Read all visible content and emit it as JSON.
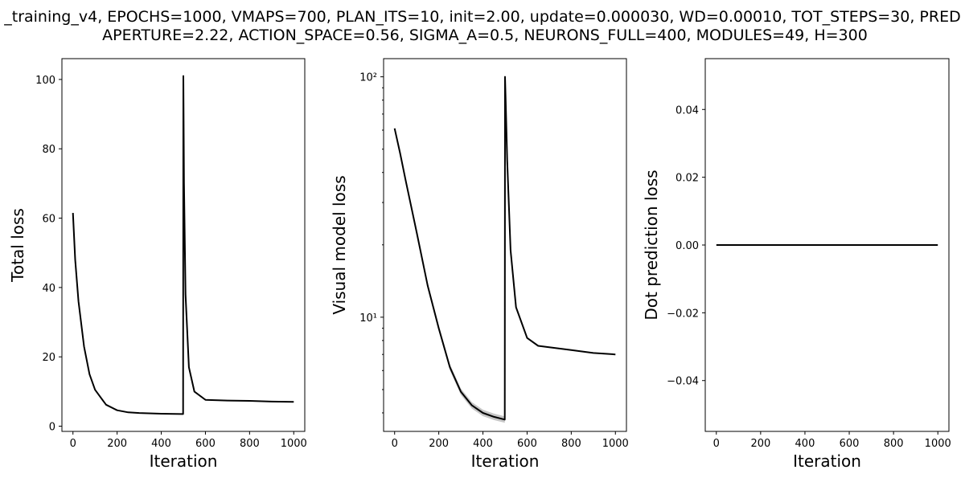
{
  "figure": {
    "title_line1": "_training_v4, EPOCHS=1000, VMAPS=700, PLAN_ITS=10, init=2.00, update=0.000030, WD=0.00010, TOT_STEPS=30, PRED",
    "title_line2": "APERTURE=2.22, ACTION_SPACE=0.56, SIGMA_A=0.5, NEURONS_FULL=400, MODULES=49, H=300"
  },
  "chart_data": [
    {
      "type": "line",
      "xlabel": "Iteration",
      "ylabel": "Total loss",
      "xlim": [
        -50,
        1050
      ],
      "ylim": [
        -1.5,
        106
      ],
      "yscale": "linear",
      "x_ticks": [
        0,
        200,
        400,
        600,
        800,
        1000
      ],
      "y_ticks": [
        0,
        20,
        40,
        60,
        80,
        100
      ],
      "grid": false,
      "line_color": "#000000",
      "series": [
        {
          "x": [
            0,
            10,
            25,
            50,
            75,
            100,
            150,
            200,
            250,
            300,
            400,
            490,
            499,
            500,
            503,
            510,
            525,
            550,
            600,
            700,
            800,
            900,
            1000
          ],
          "values": [
            61.5,
            48,
            36,
            23,
            15,
            10.5,
            6.2,
            4.6,
            4.0,
            3.8,
            3.6,
            3.5,
            3.5,
            101,
            70,
            38,
            17,
            10,
            7.6,
            7.4,
            7.3,
            7.1,
            7.0
          ]
        }
      ]
    },
    {
      "type": "line",
      "xlabel": "Iteration",
      "ylabel": "Visual model loss",
      "xlim": [
        -50,
        1050
      ],
      "ylim": [
        3.35,
        119
      ],
      "yscale": "log",
      "x_ticks": [
        0,
        200,
        400,
        600,
        800,
        1000
      ],
      "y_ticks": [
        10,
        100
      ],
      "y_tick_labels": [
        "10¹",
        "10²"
      ],
      "grid": false,
      "line_color": "#000000",
      "band_color": "#b8b8b8",
      "series": [
        {
          "x": [
            0,
            25,
            50,
            100,
            150,
            200,
            250,
            300,
            350,
            400,
            450,
            499,
            500,
            503,
            510,
            525,
            550,
            600,
            650,
            700,
            800,
            900,
            1000
          ],
          "values": [
            61,
            48,
            37,
            22.5,
            13.5,
            9.0,
            6.2,
            4.9,
            4.3,
            4.0,
            3.85,
            3.75,
            100,
            80,
            45,
            19,
            11,
            8.2,
            7.6,
            7.5,
            7.3,
            7.1,
            7.0
          ]
        }
      ]
    },
    {
      "type": "line",
      "xlabel": "Iteration",
      "ylabel": "Dot prediction loss",
      "xlim": [
        -50,
        1050
      ],
      "ylim": [
        -0.055,
        0.055
      ],
      "yscale": "linear",
      "x_ticks": [
        0,
        200,
        400,
        600,
        800,
        1000
      ],
      "y_ticks": [
        -0.04,
        -0.02,
        0.0,
        0.02,
        0.04
      ],
      "y_tick_labels": [
        "−0.04",
        "−0.02",
        "0.00",
        "0.02",
        "0.04"
      ],
      "grid": false,
      "line_color": "#000000",
      "series": [
        {
          "x": [
            0,
            1000
          ],
          "values": [
            0.0,
            0.0
          ]
        }
      ]
    }
  ]
}
